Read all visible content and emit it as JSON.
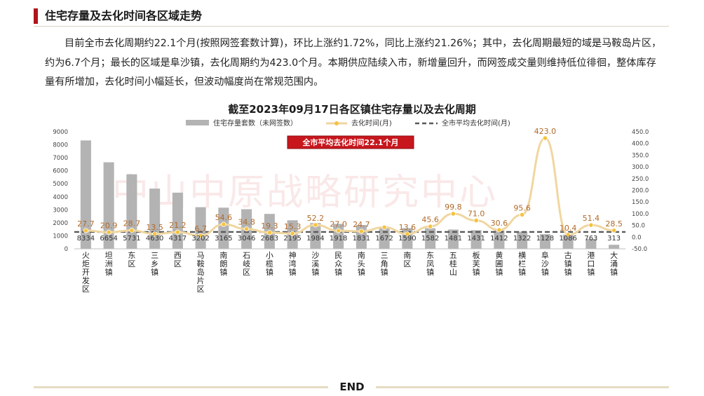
{
  "page": {
    "section_title": "住宅存量及去化时间各区域走势",
    "paragraph": "目前全市去化周期约22.1个月(按照网签套数计算)，环比上涨约1.72%，同比上涨约21.26%；其中，去化周期最短的域是马鞍岛片区，约为6.7个月；最长的区域是阜沙镇，去化周期约为423.0个月。本期供应陆续入市，新增量回升，而网签成交量则维持低位徘徊，整体库存量有所增加，去化时间小幅延长，但波动幅度尚在常规范围内。",
    "footer": "END",
    "watermark": "中山中原战略研究中心"
  },
  "chart_data": {
    "type": "bar",
    "title": "截至2023年09月17日各区镇住宅存量以及去化周期",
    "categories": [
      "火炬开发区",
      "坦洲镇",
      "东区",
      "三乡镇",
      "西区",
      "马鞍岛片区",
      "南朗镇",
      "石岐区",
      "小榄镇",
      "神湾镇",
      "沙溪镇",
      "民众镇",
      "南头镇",
      "三角镇",
      "南区",
      "东凤镇",
      "五桂山",
      "板芙镇",
      "黄圃镇",
      "横栏镇",
      "阜沙镇",
      "古镇镇",
      "港口镇",
      "大涌镇"
    ],
    "series": [
      {
        "name": "住宅存量套数（未网签数）",
        "kind": "bar",
        "axis": "left",
        "color": "#b3b3b3",
        "values": [
          8334,
          6654,
          5731,
          4630,
          4317,
          3202,
          3165,
          3046,
          2683,
          2195,
          1984,
          1918,
          1831,
          1672,
          1590,
          1582,
          1481,
          1431,
          1412,
          1322,
          1128,
          1086,
          763,
          313
        ]
      },
      {
        "name": "去化时间(月)",
        "kind": "line",
        "axis": "right",
        "color": "#f0d6a0",
        "values": [
          27.7,
          20.9,
          28.7,
          13.5,
          21.2,
          6.7,
          54.6,
          34.8,
          19.3,
          15.3,
          52.2,
          27.0,
          24.7,
          42.0,
          13.6,
          45.6,
          99.8,
          71.0,
          30.6,
          95.6,
          423.0,
          10.4,
          51.4,
          28.5
        ],
        "labels": [
          "27.7",
          "20.9",
          "28.7",
          "13.5",
          "21.2",
          "6.7",
          "54.6",
          "34.8",
          "19.3",
          "15.3",
          "52.2",
          "27.0",
          "24.7",
          "",
          "13.6",
          "45.6",
          "99.8",
          "71.0",
          "30.6",
          "95.6",
          "423.0",
          "10.4",
          "51.4",
          "28.5"
        ]
      },
      {
        "name": "全市平均去化时间(月)",
        "kind": "refline",
        "axis": "right",
        "color": "#595959",
        "value": 22.1
      }
    ],
    "ylim_left": [
      0,
      9000
    ],
    "yticks_left": [
      0,
      1000,
      2000,
      3000,
      4000,
      5000,
      6000,
      7000,
      8000,
      9000
    ],
    "ylim_right": [
      -50,
      450
    ],
    "yticks_right": [
      "-50.0",
      "0.0",
      "50.0",
      "100.0",
      "150.0",
      "200.0",
      "250.0",
      "300.0",
      "350.0",
      "400.0",
      "450.0"
    ],
    "annotation": "全市平均去化时间22.1个月",
    "legend_position": "top",
    "grid": false
  }
}
